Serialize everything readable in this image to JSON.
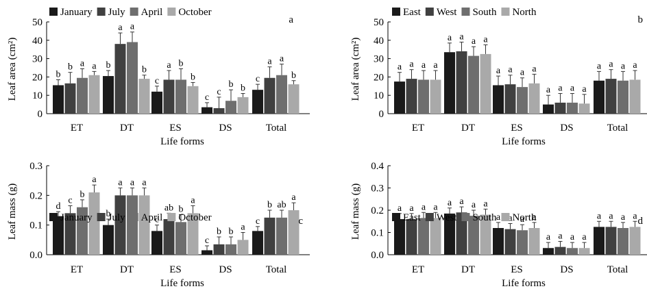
{
  "chart_data": [
    {
      "type": "bar",
      "panel_label": "a",
      "ylabel": "Leaf area (cm²)",
      "xlabel": "Life forms",
      "categories": [
        "ET",
        "DT",
        "ES",
        "DS",
        "Total"
      ],
      "ylim": [
        0,
        50
      ],
      "yticks": [
        "0",
        "10",
        "20",
        "30",
        "40",
        "50"
      ],
      "grid": false,
      "legend": "top",
      "series": [
        {
          "name": "January",
          "color": "#1a1a1a",
          "values": [
            15.5,
            20.5,
            12,
            3.5,
            13
          ],
          "errors": [
            3,
            3,
            3,
            2.5,
            3
          ],
          "sig": [
            "b",
            "b",
            "c",
            "c",
            "c"
          ]
        },
        {
          "name": "July",
          "color": "#404040",
          "values": [
            16.5,
            38,
            18.5,
            3,
            19.5
          ],
          "errors": [
            6,
            6,
            5,
            6,
            6
          ],
          "sig": [
            "b",
            "a",
            "a",
            "c",
            "a"
          ]
        },
        {
          "name": "April",
          "color": "#6e6e6e",
          "values": [
            19.5,
            39,
            18.5,
            7,
            21
          ],
          "errors": [
            5,
            5.5,
            6,
            6,
            6
          ],
          "sig": [
            "a",
            "a",
            "b",
            "b",
            "a"
          ]
        },
        {
          "name": "October",
          "color": "#a9a9a9",
          "values": [
            21,
            19,
            15,
            9,
            16
          ],
          "errors": [
            2,
            2,
            2,
            2,
            2
          ],
          "sig": [
            "a",
            "b",
            "b",
            "b",
            "b"
          ]
        }
      ]
    },
    {
      "type": "bar",
      "panel_label": "b",
      "ylabel": "Leaf area (cm²)",
      "xlabel": "Life forms",
      "categories": [
        "ET",
        "DT",
        "ES",
        "DS",
        "Total"
      ],
      "ylim": [
        0,
        50
      ],
      "yticks": [
        "0",
        "10",
        "20",
        "30",
        "40",
        "50"
      ],
      "grid": false,
      "legend": "top",
      "series": [
        {
          "name": "East",
          "color": "#1a1a1a",
          "values": [
            17.5,
            33.5,
            15.5,
            5,
            18
          ],
          "errors": [
            5,
            5,
            5,
            5,
            5
          ],
          "sig": [
            "a",
            "a",
            "a",
            "a",
            "a"
          ]
        },
        {
          "name": "West",
          "color": "#404040",
          "values": [
            19,
            34,
            16,
            6,
            19
          ],
          "errors": [
            5,
            5,
            5,
            5,
            5
          ],
          "sig": [
            "a",
            "a",
            "a",
            "a",
            "a"
          ]
        },
        {
          "name": "South",
          "color": "#6e6e6e",
          "values": [
            18.5,
            31.5,
            14.5,
            6,
            18
          ],
          "errors": [
            5,
            5,
            5,
            5,
            5
          ],
          "sig": [
            "a",
            "a",
            "a",
            "a",
            "a"
          ]
        },
        {
          "name": "North",
          "color": "#a9a9a9",
          "values": [
            18.5,
            32.5,
            16.5,
            5.5,
            18.5
          ],
          "errors": [
            5,
            5,
            5,
            5,
            5
          ],
          "sig": [
            "a",
            "a",
            "a",
            "a",
            "a"
          ]
        }
      ]
    },
    {
      "type": "bar",
      "panel_label": "c",
      "ylabel": "Leaf mass (g)",
      "xlabel": "Life forms",
      "categories": [
        "ET",
        "DT",
        "ES",
        "DS",
        "Total"
      ],
      "ylim": [
        0,
        0.3
      ],
      "yticks": [
        "0.0",
        "0.1",
        "0.2",
        "0.3"
      ],
      "grid": false,
      "legend": "top",
      "series": [
        {
          "name": "January",
          "color": "#1a1a1a",
          "values": [
            0.13,
            0.1,
            0.08,
            0.015,
            0.08
          ],
          "errors": [
            0.015,
            0.02,
            0.02,
            0.015,
            0.015
          ],
          "sig": [
            "d",
            "b",
            "c",
            "c",
            "c"
          ]
        },
        {
          "name": "July",
          "color": "#404040",
          "values": [
            0.14,
            0.2,
            0.12,
            0.035,
            0.125
          ],
          "errors": [
            0.025,
            0.025,
            0.02,
            0.025,
            0.025
          ],
          "sig": [
            "c",
            "a",
            "ab",
            "b",
            "b"
          ]
        },
        {
          "name": "April",
          "color": "#6e6e6e",
          "values": [
            0.16,
            0.2,
            0.11,
            0.035,
            0.125
          ],
          "errors": [
            0.025,
            0.025,
            0.025,
            0.025,
            0.025
          ],
          "sig": [
            "b",
            "a",
            "b",
            "b",
            "ab"
          ]
        },
        {
          "name": "October",
          "color": "#a9a9a9",
          "values": [
            0.21,
            0.2,
            0.14,
            0.05,
            0.15
          ],
          "errors": [
            0.025,
            0.025,
            0.025,
            0.025,
            0.025
          ],
          "sig": [
            "a",
            "a",
            "a",
            "a",
            "a"
          ]
        }
      ]
    },
    {
      "type": "bar",
      "panel_label": "d",
      "ylabel": "Leaf mass (g)",
      "xlabel": "Life forms",
      "categories": [
        "ET",
        "DT",
        "ES",
        "DS",
        "Total"
      ],
      "ylim": [
        0,
        0.4
      ],
      "yticks": [
        "0.0",
        "0.1",
        "0.2",
        "0.3",
        "0.4"
      ],
      "grid": false,
      "legend": "top",
      "series": [
        {
          "name": "East",
          "color": "#1a1a1a",
          "values": [
            0.16,
            0.185,
            0.12,
            0.03,
            0.125
          ],
          "errors": [
            0.025,
            0.025,
            0.025,
            0.025,
            0.025
          ],
          "sig": [
            "a",
            "a",
            "a",
            "a",
            "a"
          ]
        },
        {
          "name": "West",
          "color": "#404040",
          "values": [
            0.16,
            0.19,
            0.115,
            0.035,
            0.125
          ],
          "errors": [
            0.025,
            0.025,
            0.025,
            0.025,
            0.025
          ],
          "sig": [
            "a",
            "a",
            "a",
            "a",
            "a"
          ]
        },
        {
          "name": "South",
          "color": "#6e6e6e",
          "values": [
            0.165,
            0.175,
            0.11,
            0.03,
            0.12
          ],
          "errors": [
            0.025,
            0.025,
            0.025,
            0.025,
            0.025
          ],
          "sig": [
            "a",
            "a",
            "a",
            "a",
            "a"
          ]
        },
        {
          "name": "North",
          "color": "#a9a9a9",
          "values": [
            0.165,
            0.18,
            0.12,
            0.03,
            0.125
          ],
          "errors": [
            0.025,
            0.025,
            0.025,
            0.025,
            0.025
          ],
          "sig": [
            "a",
            "a",
            "a",
            "a",
            "a"
          ]
        }
      ]
    }
  ]
}
